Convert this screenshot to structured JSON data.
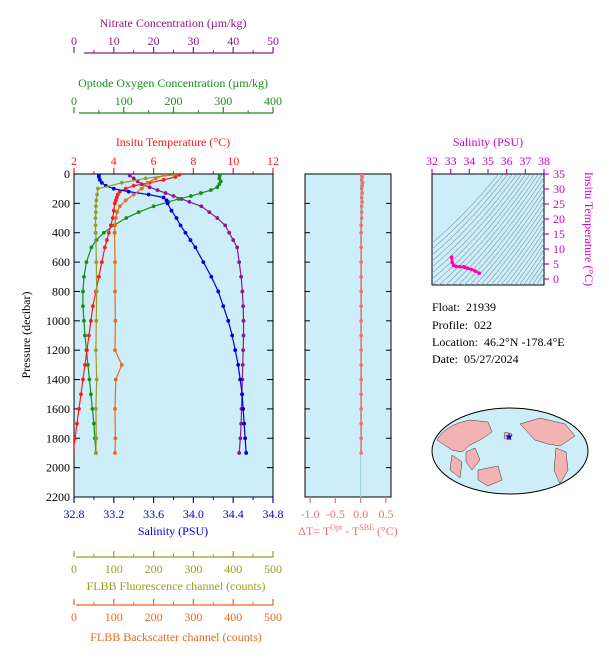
{
  "float_info": {
    "float_label": "Float:",
    "float_id": "21939",
    "profile_label": "Profile:",
    "profile": "022",
    "location_label": "Location:",
    "location": "46.2°N  -178.4°E",
    "date_label": "Date:",
    "date": "05/27/2024"
  },
  "colors": {
    "nitrate": "#8b1a8b",
    "oxygen": "#1a8c1a",
    "temperature": "#ff1a1a",
    "salinity": "#0000dd",
    "fluorescence": "#9c9c22",
    "backscatter": "#e86a1a",
    "delta_t": "#f07070",
    "ts": "#ff00aa",
    "panel_bg": "#cdeef8",
    "magenta": "#cc00cc"
  },
  "chart_data": [
    {
      "type": "line",
      "panel": "main-profile",
      "ylabel": "Pressure (decibar)",
      "ylim": [
        2200,
        0
      ],
      "yticks": [
        0,
        200,
        400,
        600,
        800,
        1000,
        1200,
        1400,
        1600,
        1800,
        2000,
        2200
      ],
      "axes": {
        "nitrate": {
          "label": "Nitrate Concentration (µm/kg)",
          "lim": [
            0,
            50
          ],
          "ticks": [
            0,
            10,
            20,
            30,
            40,
            50
          ]
        },
        "oxygen": {
          "label": "Optode Oxygen Concentration (µm/kg)",
          "lim": [
            0,
            400
          ],
          "ticks": [
            0,
            100,
            200,
            300,
            400
          ]
        },
        "temperature": {
          "label": "Insitu Temperature (°C)",
          "lim": [
            2,
            12
          ],
          "ticks": [
            2,
            4,
            6,
            8,
            10,
            12
          ]
        },
        "salinity": {
          "label": "Salinity (PSU)",
          "lim": [
            32.8,
            34.8
          ],
          "ticks": [
            32.8,
            33.2,
            33.6,
            34.0,
            34.4,
            34.8
          ],
          "tick_labels": [
            "32.8",
            "33.2",
            "33.6",
            "34.0",
            "34.4",
            "34.8"
          ]
        },
        "fluorescence": {
          "label": "FLBB Fluorescence channel (counts)",
          "lim": [
            0,
            500
          ],
          "ticks": [
            0,
            100,
            200,
            300,
            400,
            500
          ]
        },
        "backscatter": {
          "label": "FLBB Backscatter channel (counts)",
          "lim": [
            0,
            500
          ],
          "ticks": [
            0,
            100,
            200,
            300,
            400,
            500
          ]
        }
      },
      "series": [
        {
          "key": "nitrate",
          "axis": "nitrate",
          "pressure": [
            10,
            30,
            50,
            70,
            90,
            110,
            130,
            150,
            170,
            190,
            220,
            260,
            300,
            350,
            400,
            450,
            500,
            600,
            700,
            800,
            900,
            1000,
            1100,
            1200,
            1300,
            1400,
            1500,
            1600,
            1700,
            1800,
            1900
          ],
          "values": [
            14,
            15,
            16,
            17,
            19,
            21,
            23,
            25,
            27,
            29,
            32,
            34,
            36,
            38,
            39,
            40,
            41,
            41.5,
            42,
            42.3,
            42.5,
            42.6,
            42.6,
            42.5,
            42.4,
            42.3,
            42.2,
            42.1,
            42,
            41.8,
            41.5
          ]
        },
        {
          "key": "oxygen",
          "axis": "oxygen",
          "pressure": [
            10,
            30,
            50,
            70,
            90,
            110,
            130,
            150,
            170,
            190,
            220,
            260,
            300,
            350,
            400,
            450,
            500,
            600,
            700,
            800,
            900,
            1000,
            1100,
            1200,
            1300,
            1400,
            1500,
            1600,
            1700,
            1800,
            1900
          ],
          "values": [
            293,
            292,
            295,
            292,
            288,
            275,
            255,
            235,
            210,
            190,
            160,
            130,
            105,
            80,
            60,
            45,
            35,
            25,
            20,
            18,
            18,
            20,
            22,
            25,
            28,
            31,
            34,
            37,
            40,
            42,
            44
          ]
        },
        {
          "key": "temperature",
          "axis": "temperature",
          "pressure": [
            5,
            20,
            40,
            60,
            80,
            100,
            120,
            140,
            160,
            180,
            200,
            250,
            300,
            350,
            400,
            450,
            500,
            600,
            700,
            800,
            900,
            1000,
            1100,
            1200,
            1300,
            1400,
            1500,
            1600,
            1700,
            1800,
            1900
          ],
          "values": [
            7.3,
            7.1,
            6.5,
            5.8,
            5.0,
            4.6,
            4.3,
            4.2,
            4.15,
            4.1,
            4.05,
            4.0,
            3.95,
            3.85,
            3.75,
            3.65,
            3.55,
            3.4,
            3.25,
            3.1,
            2.95,
            2.85,
            2.75,
            2.65,
            2.55,
            2.45,
            2.35,
            2.25,
            2.15,
            2.05,
            1.95
          ]
        },
        {
          "key": "salinity",
          "axis": "salinity",
          "pressure": [
            5,
            20,
            40,
            60,
            80,
            100,
            120,
            140,
            160,
            180,
            200,
            250,
            300,
            350,
            400,
            450,
            500,
            600,
            700,
            800,
            900,
            1000,
            1100,
            1200,
            1300,
            1400,
            1500,
            1600,
            1700,
            1800,
            1900
          ],
          "values": [
            33.05,
            33.05,
            33.06,
            33.08,
            33.12,
            33.2,
            33.35,
            33.55,
            33.7,
            33.73,
            33.74,
            33.78,
            33.83,
            33.87,
            33.92,
            33.97,
            34.02,
            34.1,
            34.18,
            34.25,
            34.3,
            34.35,
            34.39,
            34.42,
            34.45,
            34.47,
            34.49,
            34.5,
            34.51,
            34.52,
            34.53
          ]
        },
        {
          "key": "fluorescence",
          "axis": "fluorescence",
          "pressure": [
            5,
            30,
            60,
            100,
            140,
            180,
            220,
            260,
            300,
            350,
            400
          ],
          "values": [
            250,
            180,
            120,
            60,
            58,
            56,
            55,
            55,
            54,
            54,
            54
          ]
        },
        {
          "key": "fluorescence-deep",
          "axis": "fluorescence",
          "pressure": [
            400,
            600,
            800,
            1000,
            1200,
            1400,
            1600,
            1800,
            1900
          ],
          "values": [
            55,
            56,
            57,
            56,
            55,
            57,
            55,
            56,
            55
          ]
        },
        {
          "key": "backscatter",
          "axis": "backscatter",
          "pressure": [
            5,
            30,
            60,
            100,
            140,
            180,
            220,
            260,
            300,
            350,
            400
          ],
          "values": [
            230,
            205,
            185,
            170,
            150,
            130,
            115,
            108,
            105,
            103,
            102
          ]
        },
        {
          "key": "backscatter-deep",
          "axis": "backscatter",
          "pressure": [
            400,
            600,
            800,
            1000,
            1200,
            1300,
            1400,
            1600,
            1800,
            1900
          ],
          "values": [
            102,
            103,
            103,
            104,
            103,
            120,
            105,
            103,
            104,
            103
          ]
        }
      ]
    },
    {
      "type": "line",
      "panel": "delta-t",
      "xlabel": "ΔT= T^Opt - T^SBE (°C)",
      "xlabel_parts": {
        "prefix": "ΔT= T",
        "sup1": "Opt",
        "mid": " - T",
        "sup2": "SBE",
        "suffix": " (°C)"
      },
      "xlim": [
        -1.1,
        0.6
      ],
      "xticks": [
        -1.0,
        -0.5,
        0.0,
        0.5
      ],
      "xtick_labels": [
        "-1.0",
        "-0.5",
        "0.0",
        "0.5"
      ],
      "ylim": [
        2200,
        0
      ],
      "pressure": [
        5,
        20,
        40,
        60,
        80,
        100,
        130,
        160,
        190,
        220,
        260,
        300,
        350,
        400,
        500,
        600,
        700,
        800,
        900,
        1000,
        1100,
        1200,
        1300,
        1400,
        1500,
        1600,
        1700,
        1800,
        1900
      ],
      "values": [
        0.02,
        0.03,
        0.02,
        0.04,
        0.03,
        0.02,
        0.03,
        0.02,
        0.03,
        0.02,
        0.02,
        0.02,
        0.01,
        0.01,
        0.01,
        0.01,
        0.01,
        0.01,
        0.01,
        0.01,
        0.01,
        0.01,
        0.01,
        0.01,
        0.01,
        0.01,
        0.01,
        0.01,
        0.01
      ]
    },
    {
      "type": "scatter",
      "panel": "ts-diagram",
      "xlabel": "Salinity (PSU)",
      "ylabel": "Insitu Temperature (°C)",
      "xlim": [
        32,
        38
      ],
      "xticks": [
        32,
        33,
        34,
        35,
        36,
        37,
        38
      ],
      "ylim": [
        -2,
        35
      ],
      "yticks": [
        0,
        5,
        10,
        15,
        20,
        25,
        30,
        35
      ],
      "salinity": [
        33.05,
        33.05,
        33.08,
        33.15,
        33.3,
        33.5,
        33.7,
        33.75,
        33.9,
        34.1,
        34.3,
        34.53
      ],
      "temperature": [
        7.3,
        7.1,
        5.6,
        4.6,
        4.2,
        4.1,
        4.05,
        3.9,
        3.6,
        3.2,
        2.7,
        1.95
      ]
    }
  ]
}
